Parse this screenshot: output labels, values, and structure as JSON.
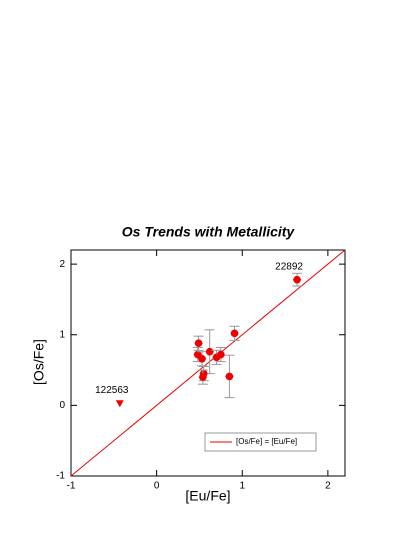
{
  "chart_data": {
    "type": "scatter",
    "title": "Os Trends with Metallicity",
    "x_label": "[Eu/Fe]",
    "y_label": "[Os/Fe]",
    "xlim": [
      -1,
      2.2
    ],
    "ylim": [
      -1,
      2.2
    ],
    "xticks": [
      -1,
      0,
      1,
      2
    ],
    "yticks": [
      -1,
      0,
      1,
      2
    ],
    "color": "#ee0000",
    "x": [
      1.64,
      0.91,
      0.49,
      0.48,
      0.53,
      0.62,
      0.7,
      0.75,
      0.55,
      0.54,
      0.85
    ],
    "y": [
      1.78,
      1.02,
      0.88,
      0.72,
      0.66,
      0.76,
      0.68,
      0.72,
      0.45,
      0.4,
      0.41
    ],
    "xerr": [
      0.05,
      0.05,
      0.05,
      0.05,
      0.05,
      0.05,
      0.05,
      0.05,
      0.05,
      0.05,
      0.05
    ],
    "yerr": [
      0.09,
      0.1,
      0.1,
      0.1,
      0.1,
      0.31,
      0.1,
      0.1,
      0.1,
      0.1,
      0.3
    ],
    "upper_limits": {
      "x": [
        -0.43
      ],
      "y": [
        0.03
      ]
    },
    "annotations": [
      {
        "text": "22892",
        "x": 1.64,
        "y": 1.78
      },
      {
        "text": "122563",
        "x": -0.43,
        "y": 0.03
      }
    ],
    "reference_line": {
      "label": "[Os/Fe] = [Eu/Fe]",
      "color": "#ee0000"
    }
  }
}
